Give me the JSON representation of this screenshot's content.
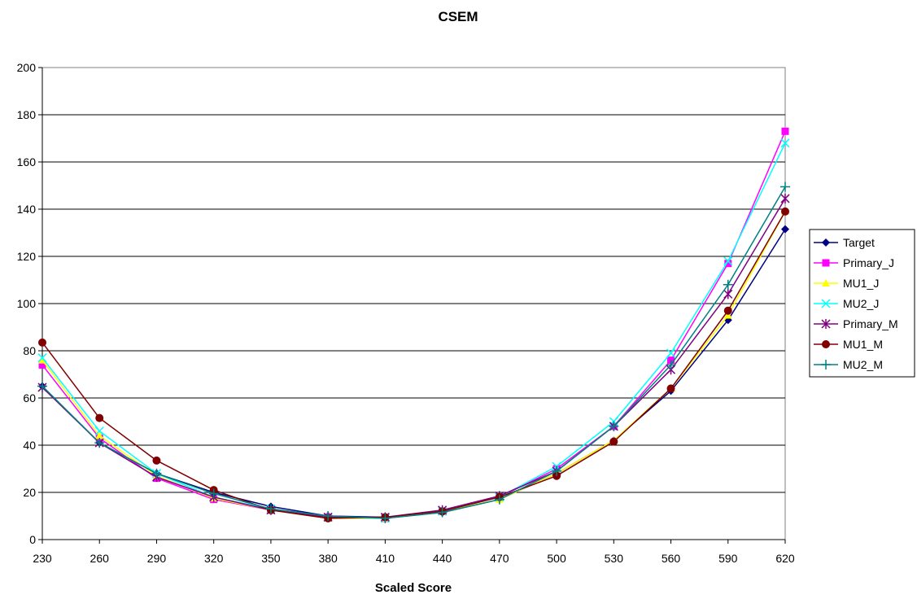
{
  "chart_data": {
    "type": "line",
    "title": "CSEM",
    "xlabel": "Scaled Score",
    "ylabel": "",
    "x": [
      230,
      260,
      290,
      320,
      350,
      380,
      410,
      440,
      470,
      500,
      530,
      560,
      590,
      620
    ],
    "ylim": [
      0,
      200
    ],
    "yticks": [
      0,
      20,
      40,
      60,
      80,
      100,
      120,
      140,
      160,
      180,
      200
    ],
    "grid": "horizontal",
    "legend_position": "right",
    "series": [
      {
        "name": "Target",
        "color": "#000080",
        "marker": "diamond",
        "values": [
          65,
          41,
          28,
          20,
          14,
          10,
          9.5,
          11.5,
          17,
          28,
          42,
          63,
          93,
          131.5
        ]
      },
      {
        "name": "Primary_J",
        "color": "#FF00FF",
        "marker": "square",
        "values": [
          74,
          43,
          26,
          17,
          12.5,
          9.5,
          9,
          12,
          18,
          30,
          48,
          76,
          117,
          173
        ]
      },
      {
        "name": "MU1_J",
        "color": "#FFFF00",
        "marker": "triangle",
        "values": [
          76,
          44,
          27,
          17.5,
          12.5,
          9,
          9,
          12,
          17,
          28,
          42,
          64,
          95,
          139
        ]
      },
      {
        "name": "MU2_J",
        "color": "#00FFFF",
        "marker": "x",
        "values": [
          77,
          46,
          28,
          18,
          13,
          9.5,
          9,
          12,
          18,
          31,
          50,
          79,
          118,
          168
        ]
      },
      {
        "name": "Primary_M",
        "color": "#800080",
        "marker": "star",
        "values": [
          64.5,
          41,
          26.5,
          18,
          12.5,
          9.5,
          9.5,
          12.5,
          18.5,
          29,
          48,
          72,
          104,
          144.5
        ]
      },
      {
        "name": "MU1_M",
        "color": "#800000",
        "marker": "circle",
        "values": [
          83.5,
          51.5,
          33.5,
          21,
          12.5,
          9,
          9.5,
          12,
          18,
          27,
          41.5,
          64,
          97,
          139
        ]
      },
      {
        "name": "MU2_M",
        "color": "#008080",
        "marker": "plus",
        "values": [
          65,
          41,
          28,
          19.5,
          13,
          10,
          9,
          11.5,
          17,
          29,
          48,
          74,
          108,
          149.5
        ]
      }
    ]
  }
}
